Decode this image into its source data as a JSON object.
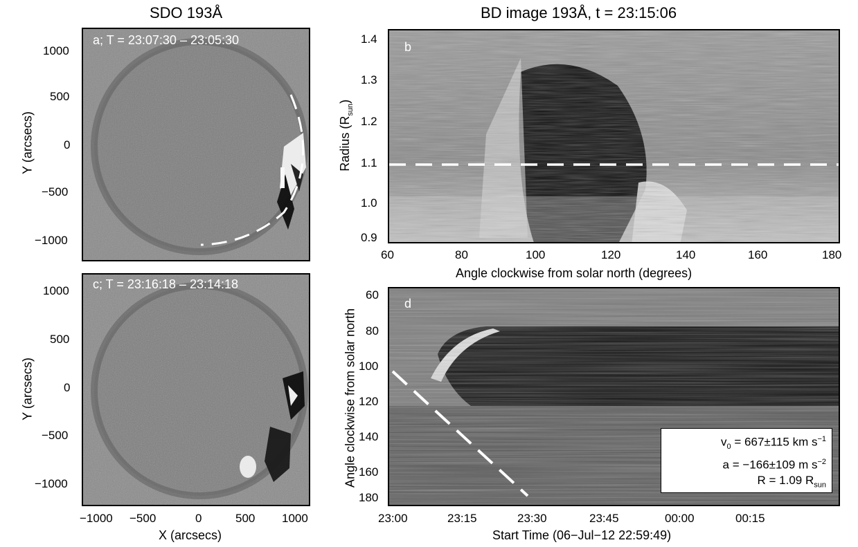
{
  "left_title": "SDO 193Å",
  "right_title": "BD image 193Å, t = 23:15:06",
  "panel_a": {
    "label": "a; T = 23:07:30 – 23:05:30",
    "ylabel": "Y (arcsecs)",
    "yticks": [
      "1000",
      "500",
      "0",
      "−500",
      "−1000"
    ]
  },
  "panel_c": {
    "label": "c; T = 23:16:18 – 23:14:18",
    "ylabel": "Y (arcsecs)",
    "yticks": [
      "1000",
      "500",
      "0",
      "−500",
      "−1000"
    ],
    "xlabel": "X (arcsecs)",
    "xticks": [
      "−1000",
      "−500",
      "0",
      "500",
      "1000"
    ]
  },
  "panel_b": {
    "label": "b",
    "ylabel_main": "Radius (R",
    "ylabel_sub": "sun",
    "ylabel_end": ")",
    "yticks": [
      "1.4",
      "1.3",
      "1.2",
      "1.1",
      "1.0",
      "0.9"
    ],
    "xticks": [
      "60",
      "80",
      "100",
      "120",
      "140",
      "160",
      "180"
    ],
    "xlabel": "Angle clockwise from solar north (degrees)"
  },
  "panel_d": {
    "label": "d",
    "ylabel": "Angle clockwise from solar north",
    "yticks": [
      "60",
      "80",
      "100",
      "120",
      "140",
      "160",
      "180"
    ],
    "xticks": [
      "23:00",
      "23:15",
      "23:30",
      "23:45",
      "00:00",
      "00:15"
    ],
    "xlabel": "Start Time (06−Jul−12 22:59:49)",
    "fit": {
      "v0_main": "v",
      "v0_sub": "0",
      "v0_rest": " = 667±115 km s",
      "v0_sup": "−1",
      "a_main": "a = −166±109 m s",
      "a_sup": "−2",
      "r_main": "R = 1.09 R",
      "r_sub": "sun"
    }
  },
  "colors": {
    "background": "#ffffff",
    "panel_gray": "#8a8a8a",
    "dark": "#111111",
    "dashed": "#ffffff"
  }
}
